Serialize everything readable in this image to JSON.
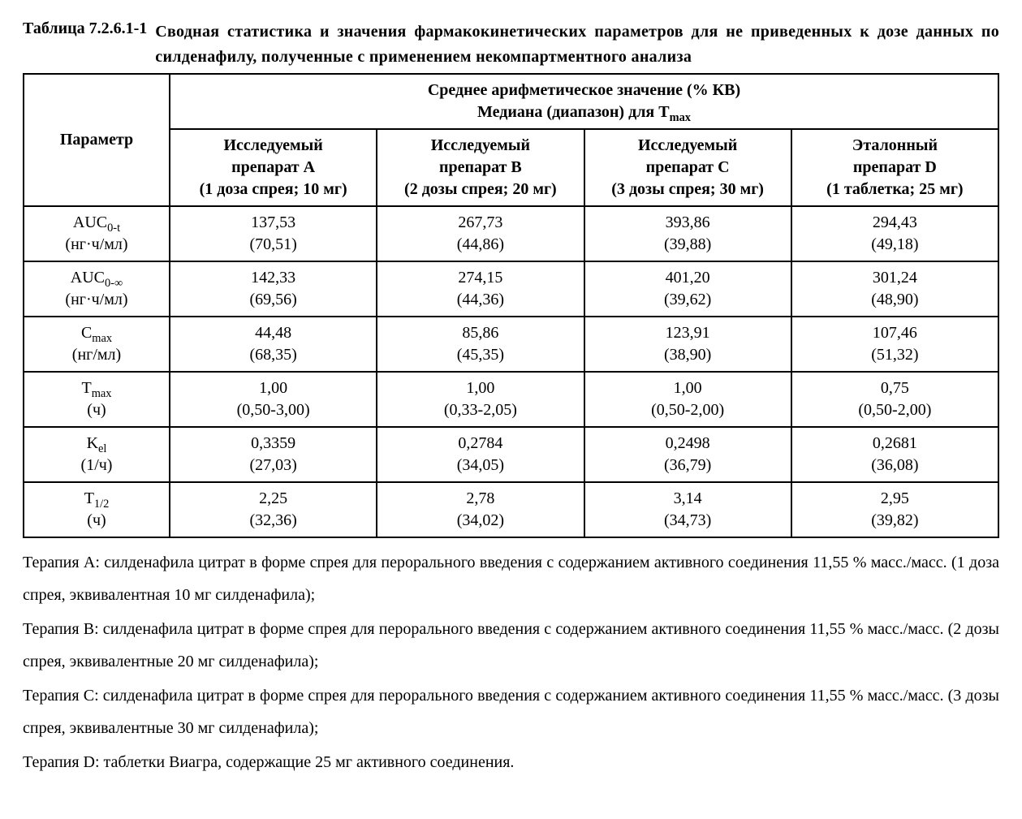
{
  "title": {
    "label": "Таблица 7.2.6.1-1",
    "text": "Сводная статистика и значения фармакокинетических параметров для не приведенных к дозе данных по силденафилу, полученные с применением некомпартментного анализа"
  },
  "header": {
    "param": "Параметр",
    "top1": "Среднее арифметическое значение (% КВ)",
    "top2_prefix": "Медиана (диапазон) для T",
    "top2_sub": "max",
    "groups": [
      {
        "l1": "Исследуемый",
        "l2": "препарат A",
        "l3": "(1 доза спрея; 10 мг)"
      },
      {
        "l1": "Исследуемый",
        "l2": "препарат B",
        "l3": "(2 дозы спрея; 20 мг)"
      },
      {
        "l1": "Исследуемый",
        "l2": "препарат C",
        "l3": "(3 дозы спрея; 30 мг)"
      },
      {
        "l1": "Эталонный",
        "l2": "препарат D",
        "l3": "(1 таблетка; 25 мг)"
      }
    ]
  },
  "rows": [
    {
      "param_main": "AUC",
      "param_sub": "0-t",
      "param_unit": "(нг·ч/мл)",
      "cells": [
        {
          "v1": "137,53",
          "v2": "(70,51)"
        },
        {
          "v1": "267,73",
          "v2": "(44,86)"
        },
        {
          "v1": "393,86",
          "v2": "(39,88)"
        },
        {
          "v1": "294,43",
          "v2": "(49,18)"
        }
      ]
    },
    {
      "param_main": "AUC",
      "param_sub": "0-∞",
      "param_unit": "(нг·ч/мл)",
      "cells": [
        {
          "v1": "142,33",
          "v2": "(69,56)"
        },
        {
          "v1": "274,15",
          "v2": "(44,36)"
        },
        {
          "v1": "401,20",
          "v2": "(39,62)"
        },
        {
          "v1": "301,24",
          "v2": "(48,90)"
        }
      ]
    },
    {
      "param_main": "C",
      "param_sub": "max",
      "param_unit": "(нг/мл)",
      "cells": [
        {
          "v1": "44,48",
          "v2": "(68,35)"
        },
        {
          "v1": "85,86",
          "v2": "(45,35)"
        },
        {
          "v1": "123,91",
          "v2": "(38,90)"
        },
        {
          "v1": "107,46",
          "v2": "(51,32)"
        }
      ]
    },
    {
      "param_main": "T",
      "param_sub": "max",
      "param_unit": "(ч)",
      "cells": [
        {
          "v1": "1,00",
          "v2": "(0,50-3,00)"
        },
        {
          "v1": "1,00",
          "v2": "(0,33-2,05)"
        },
        {
          "v1": "1,00",
          "v2": "(0,50-2,00)"
        },
        {
          "v1": "0,75",
          "v2": "(0,50-2,00)"
        }
      ]
    },
    {
      "param_main": "K",
      "param_sub": "el",
      "param_unit": "(1/ч)",
      "cells": [
        {
          "v1": "0,3359",
          "v2": "(27,03)"
        },
        {
          "v1": "0,2784",
          "v2": "(34,05)"
        },
        {
          "v1": "0,2498",
          "v2": "(36,79)"
        },
        {
          "v1": "0,2681",
          "v2": "(36,08)"
        }
      ]
    },
    {
      "param_main": "T",
      "param_sub": "1/2",
      "param_unit": "(ч)",
      "cells": [
        {
          "v1": "2,25",
          "v2": "(32,36)"
        },
        {
          "v1": "2,78",
          "v2": "(34,02)"
        },
        {
          "v1": "3,14",
          "v2": "(34,73)"
        },
        {
          "v1": "2,95",
          "v2": "(39,82)"
        }
      ]
    }
  ],
  "footnotes": [
    "Терапия A: силденафила цитрат в форме спрея для перорального введения с содержанием активного соединения 11,55 % масс./масс. (1 доза спрея, эквивалентная 10 мг силденафила);",
    "Терапия B: силденафила цитрат в форме спрея для перорального введения с содержанием активного соединения 11,55 % масс./масс. (2 дозы спрея, эквивалентные 20 мг силденафила);",
    "Терапия C: силденафила цитрат в форме спрея для перорального введения с содержанием активного соединения 11,55 % масс./масс. (3 дозы спрея, эквивалентные 30 мг силденафила);",
    "Терапия D: таблетки Виагра, содержащие 25 мг активного соединения."
  ]
}
